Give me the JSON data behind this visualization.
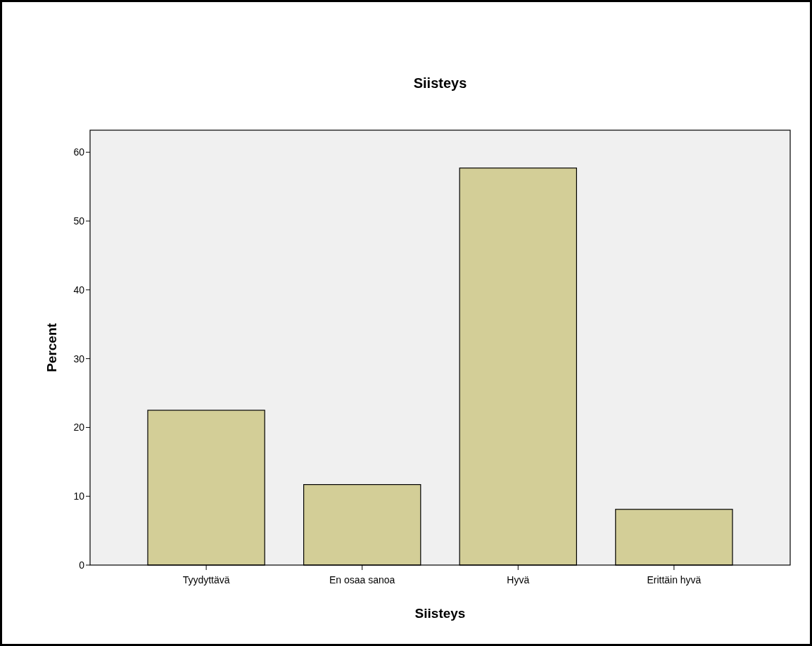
{
  "chart_data": {
    "type": "bar",
    "title": "Siisteys",
    "xlabel": "Siisteys",
    "ylabel": "Percent",
    "categories": [
      "Tyydyttävä",
      "En osaa sanoa",
      "Hyvä",
      "Erittäin hyvä"
    ],
    "values": [
      22.5,
      11.7,
      57.7,
      8.1
    ],
    "color": "#d3ce97",
    "ylim": [
      0,
      63.2
    ],
    "yticks": [
      0,
      10,
      20,
      30,
      40,
      50,
      60
    ],
    "grid": false
  }
}
